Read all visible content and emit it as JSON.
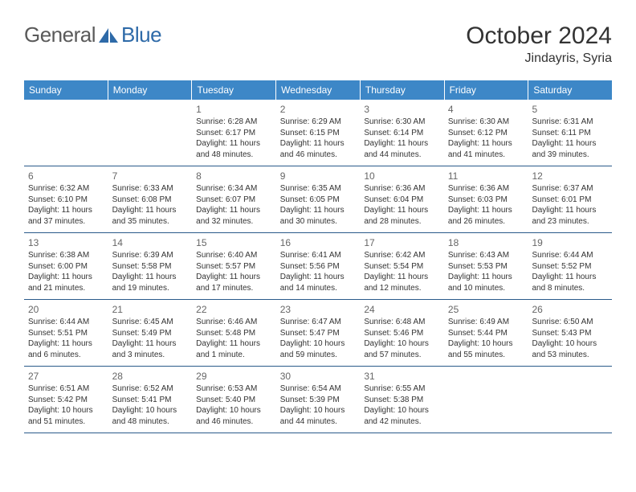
{
  "brand": {
    "name_part1": "General",
    "name_part2": "Blue"
  },
  "header": {
    "month": "October 2024",
    "location": "Jindayris, Syria"
  },
  "colors": {
    "header_bg": "#3d87c7",
    "header_text": "#ffffff",
    "row_border": "#2a5a8a",
    "text": "#333333",
    "daynum": "#666666",
    "logo_gray": "#5a5a5a",
    "logo_blue": "#2e6aa8"
  },
  "weekdays": [
    "Sunday",
    "Monday",
    "Tuesday",
    "Wednesday",
    "Thursday",
    "Friday",
    "Saturday"
  ],
  "weeks": [
    [
      null,
      null,
      {
        "n": "1",
        "sr": "Sunrise: 6:28 AM",
        "ss": "Sunset: 6:17 PM",
        "d1": "Daylight: 11 hours",
        "d2": "and 48 minutes."
      },
      {
        "n": "2",
        "sr": "Sunrise: 6:29 AM",
        "ss": "Sunset: 6:15 PM",
        "d1": "Daylight: 11 hours",
        "d2": "and 46 minutes."
      },
      {
        "n": "3",
        "sr": "Sunrise: 6:30 AM",
        "ss": "Sunset: 6:14 PM",
        "d1": "Daylight: 11 hours",
        "d2": "and 44 minutes."
      },
      {
        "n": "4",
        "sr": "Sunrise: 6:30 AM",
        "ss": "Sunset: 6:12 PM",
        "d1": "Daylight: 11 hours",
        "d2": "and 41 minutes."
      },
      {
        "n": "5",
        "sr": "Sunrise: 6:31 AM",
        "ss": "Sunset: 6:11 PM",
        "d1": "Daylight: 11 hours",
        "d2": "and 39 minutes."
      }
    ],
    [
      {
        "n": "6",
        "sr": "Sunrise: 6:32 AM",
        "ss": "Sunset: 6:10 PM",
        "d1": "Daylight: 11 hours",
        "d2": "and 37 minutes."
      },
      {
        "n": "7",
        "sr": "Sunrise: 6:33 AM",
        "ss": "Sunset: 6:08 PM",
        "d1": "Daylight: 11 hours",
        "d2": "and 35 minutes."
      },
      {
        "n": "8",
        "sr": "Sunrise: 6:34 AM",
        "ss": "Sunset: 6:07 PM",
        "d1": "Daylight: 11 hours",
        "d2": "and 32 minutes."
      },
      {
        "n": "9",
        "sr": "Sunrise: 6:35 AM",
        "ss": "Sunset: 6:05 PM",
        "d1": "Daylight: 11 hours",
        "d2": "and 30 minutes."
      },
      {
        "n": "10",
        "sr": "Sunrise: 6:36 AM",
        "ss": "Sunset: 6:04 PM",
        "d1": "Daylight: 11 hours",
        "d2": "and 28 minutes."
      },
      {
        "n": "11",
        "sr": "Sunrise: 6:36 AM",
        "ss": "Sunset: 6:03 PM",
        "d1": "Daylight: 11 hours",
        "d2": "and 26 minutes."
      },
      {
        "n": "12",
        "sr": "Sunrise: 6:37 AM",
        "ss": "Sunset: 6:01 PM",
        "d1": "Daylight: 11 hours",
        "d2": "and 23 minutes."
      }
    ],
    [
      {
        "n": "13",
        "sr": "Sunrise: 6:38 AM",
        "ss": "Sunset: 6:00 PM",
        "d1": "Daylight: 11 hours",
        "d2": "and 21 minutes."
      },
      {
        "n": "14",
        "sr": "Sunrise: 6:39 AM",
        "ss": "Sunset: 5:58 PM",
        "d1": "Daylight: 11 hours",
        "d2": "and 19 minutes."
      },
      {
        "n": "15",
        "sr": "Sunrise: 6:40 AM",
        "ss": "Sunset: 5:57 PM",
        "d1": "Daylight: 11 hours",
        "d2": "and 17 minutes."
      },
      {
        "n": "16",
        "sr": "Sunrise: 6:41 AM",
        "ss": "Sunset: 5:56 PM",
        "d1": "Daylight: 11 hours",
        "d2": "and 14 minutes."
      },
      {
        "n": "17",
        "sr": "Sunrise: 6:42 AM",
        "ss": "Sunset: 5:54 PM",
        "d1": "Daylight: 11 hours",
        "d2": "and 12 minutes."
      },
      {
        "n": "18",
        "sr": "Sunrise: 6:43 AM",
        "ss": "Sunset: 5:53 PM",
        "d1": "Daylight: 11 hours",
        "d2": "and 10 minutes."
      },
      {
        "n": "19",
        "sr": "Sunrise: 6:44 AM",
        "ss": "Sunset: 5:52 PM",
        "d1": "Daylight: 11 hours",
        "d2": "and 8 minutes."
      }
    ],
    [
      {
        "n": "20",
        "sr": "Sunrise: 6:44 AM",
        "ss": "Sunset: 5:51 PM",
        "d1": "Daylight: 11 hours",
        "d2": "and 6 minutes."
      },
      {
        "n": "21",
        "sr": "Sunrise: 6:45 AM",
        "ss": "Sunset: 5:49 PM",
        "d1": "Daylight: 11 hours",
        "d2": "and 3 minutes."
      },
      {
        "n": "22",
        "sr": "Sunrise: 6:46 AM",
        "ss": "Sunset: 5:48 PM",
        "d1": "Daylight: 11 hours",
        "d2": "and 1 minute."
      },
      {
        "n": "23",
        "sr": "Sunrise: 6:47 AM",
        "ss": "Sunset: 5:47 PM",
        "d1": "Daylight: 10 hours",
        "d2": "and 59 minutes."
      },
      {
        "n": "24",
        "sr": "Sunrise: 6:48 AM",
        "ss": "Sunset: 5:46 PM",
        "d1": "Daylight: 10 hours",
        "d2": "and 57 minutes."
      },
      {
        "n": "25",
        "sr": "Sunrise: 6:49 AM",
        "ss": "Sunset: 5:44 PM",
        "d1": "Daylight: 10 hours",
        "d2": "and 55 minutes."
      },
      {
        "n": "26",
        "sr": "Sunrise: 6:50 AM",
        "ss": "Sunset: 5:43 PM",
        "d1": "Daylight: 10 hours",
        "d2": "and 53 minutes."
      }
    ],
    [
      {
        "n": "27",
        "sr": "Sunrise: 6:51 AM",
        "ss": "Sunset: 5:42 PM",
        "d1": "Daylight: 10 hours",
        "d2": "and 51 minutes."
      },
      {
        "n": "28",
        "sr": "Sunrise: 6:52 AM",
        "ss": "Sunset: 5:41 PM",
        "d1": "Daylight: 10 hours",
        "d2": "and 48 minutes."
      },
      {
        "n": "29",
        "sr": "Sunrise: 6:53 AM",
        "ss": "Sunset: 5:40 PM",
        "d1": "Daylight: 10 hours",
        "d2": "and 46 minutes."
      },
      {
        "n": "30",
        "sr": "Sunrise: 6:54 AM",
        "ss": "Sunset: 5:39 PM",
        "d1": "Daylight: 10 hours",
        "d2": "and 44 minutes."
      },
      {
        "n": "31",
        "sr": "Sunrise: 6:55 AM",
        "ss": "Sunset: 5:38 PM",
        "d1": "Daylight: 10 hours",
        "d2": "and 42 minutes."
      },
      null,
      null
    ]
  ]
}
